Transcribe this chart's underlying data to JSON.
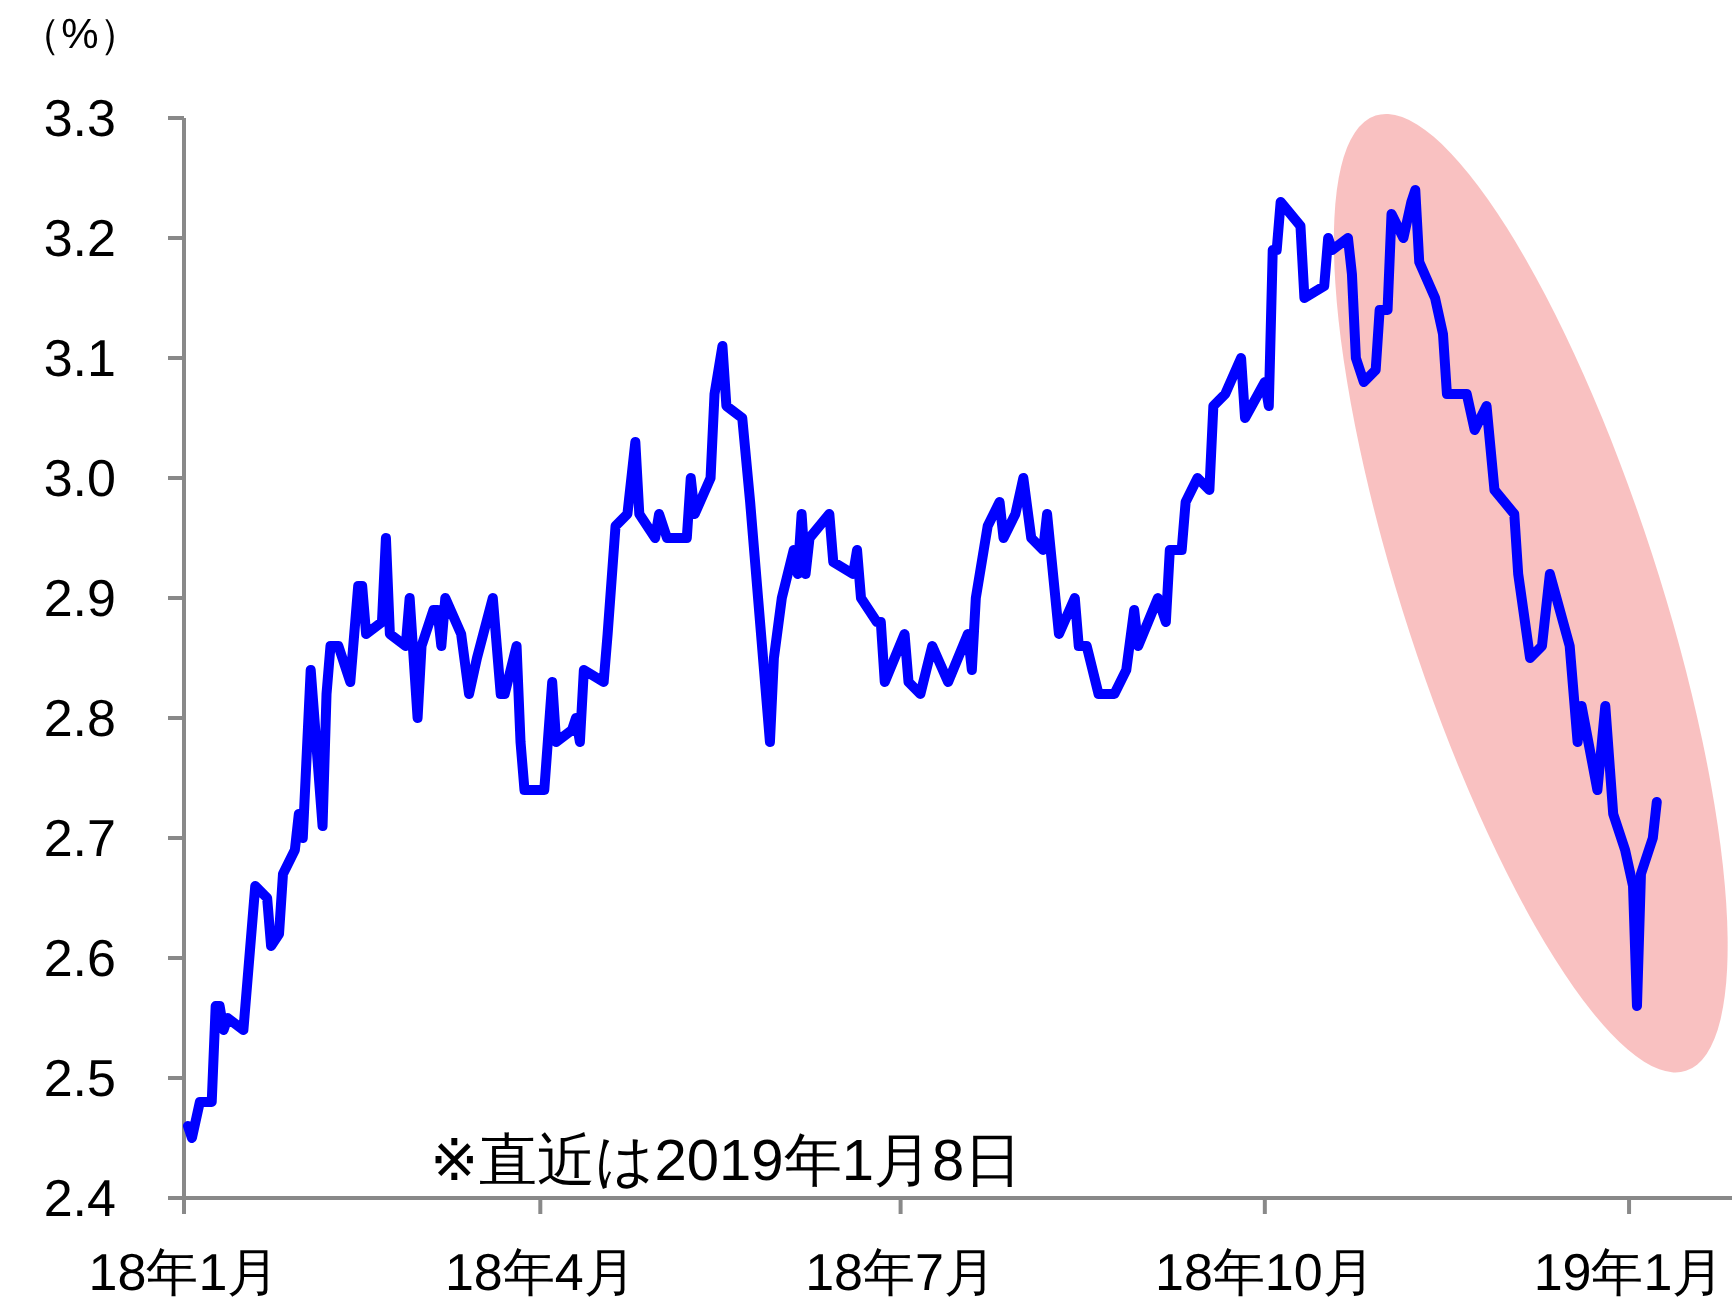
{
  "chart_data": {
    "type": "line",
    "ylabel": "（%）",
    "annotations": [
      "※直近は2019年1月8日"
    ],
    "x": [
      "2018-01-02",
      "2018-01-03",
      "2018-01-05",
      "2018-01-08",
      "2018-01-09",
      "2018-01-10",
      "2018-01-11",
      "2018-01-12",
      "2018-01-16",
      "2018-01-19",
      "2018-01-22",
      "2018-01-23",
      "2018-01-25",
      "2018-01-26",
      "2018-01-29",
      "2018-01-30",
      "2018-01-31",
      "2018-02-02",
      "2018-02-05",
      "2018-02-06",
      "2018-02-07",
      "2018-02-09",
      "2018-02-12",
      "2018-02-14",
      "2018-02-15",
      "2018-02-16",
      "2018-02-20",
      "2018-02-21",
      "2018-02-22",
      "2018-02-26",
      "2018-02-27",
      "2018-03-01",
      "2018-03-02",
      "2018-03-05",
      "2018-03-06",
      "2018-03-07",
      "2018-03-08",
      "2018-03-12",
      "2018-03-14",
      "2018-03-16",
      "2018-03-20",
      "2018-03-22",
      "2018-03-23",
      "2018-03-26",
      "2018-03-27",
      "2018-03-28",
      "2018-04-02",
      "2018-04-04",
      "2018-04-05",
      "2018-04-09",
      "2018-04-10",
      "2018-04-11",
      "2018-04-12",
      "2018-04-17",
      "2018-04-18",
      "2018-04-20",
      "2018-04-23",
      "2018-04-25",
      "2018-04-26",
      "2018-04-30",
      "2018-05-01",
      "2018-05-03",
      "2018-05-08",
      "2018-05-09",
      "2018-05-10",
      "2018-05-14",
      "2018-05-15",
      "2018-05-17",
      "2018-05-18",
      "2018-05-22",
      "2018-05-24",
      "2018-05-29",
      "2018-05-30",
      "2018-06-01",
      "2018-06-04",
      "2018-06-05",
      "2018-06-06",
      "2018-06-07",
      "2018-06-08",
      "2018-06-13",
      "2018-06-14",
      "2018-06-19",
      "2018-06-20",
      "2018-06-21",
      "2018-06-25",
      "2018-06-26",
      "2018-06-27",
      "2018-07-02",
      "2018-07-03",
      "2018-07-06",
      "2018-07-09",
      "2018-07-13",
      "2018-07-18",
      "2018-07-19",
      "2018-07-20",
      "2018-07-23",
      "2018-07-26",
      "2018-07-27",
      "2018-07-30",
      "2018-08-01",
      "2018-08-03",
      "2018-08-06",
      "2018-08-07",
      "2018-08-10",
      "2018-08-14",
      "2018-08-15",
      "2018-08-17",
      "2018-08-20",
      "2018-08-24",
      "2018-08-27",
      "2018-08-29",
      "2018-08-30",
      "2018-09-04",
      "2018-09-06",
      "2018-09-07",
      "2018-09-10",
      "2018-09-11",
      "2018-09-14",
      "2018-09-17",
      "2018-09-18",
      "2018-09-21",
      "2018-09-25",
      "2018-09-26",
      "2018-10-01",
      "2018-10-02",
      "2018-10-03",
      "2018-10-04",
      "2018-10-05",
      "2018-10-10",
      "2018-10-11",
      "2018-10-16",
      "2018-10-17",
      "2018-10-18",
      "2018-10-22",
      "2018-10-23",
      "2018-10-24",
      "2018-10-26",
      "2018-10-29",
      "2018-10-30",
      "2018-11-01",
      "2018-11-02",
      "2018-11-05",
      "2018-11-07",
      "2018-11-08",
      "2018-11-09",
      "2018-11-13",
      "2018-11-15",
      "2018-11-16",
      "2018-11-21",
      "2018-11-23",
      "2018-11-26",
      "2018-11-28",
      "2018-12-03",
      "2018-12-04",
      "2018-12-07",
      "2018-12-10",
      "2018-12-12",
      "2018-12-17",
      "2018-12-19",
      "2018-12-20",
      "2018-12-24",
      "2018-12-26",
      "2018-12-28",
      "2018-12-31",
      "2019-01-02",
      "2019-01-03",
      "2019-01-04",
      "2019-01-07",
      "2019-01-08"
    ],
    "series": [
      {
        "color": "#0000ff",
        "values": [
          2.46,
          2.45,
          2.48,
          2.48,
          2.56,
          2.56,
          2.54,
          2.55,
          2.54,
          2.66,
          2.65,
          2.61,
          2.62,
          2.67,
          2.69,
          2.72,
          2.7,
          2.84,
          2.71,
          2.82,
          2.86,
          2.86,
          2.83,
          2.91,
          2.91,
          2.87,
          2.88,
          2.95,
          2.87,
          2.86,
          2.9,
          2.8,
          2.86,
          2.89,
          2.89,
          2.86,
          2.9,
          2.87,
          2.82,
          2.85,
          2.9,
          2.82,
          2.82,
          2.86,
          2.78,
          2.74,
          2.74,
          2.83,
          2.78,
          2.79,
          2.8,
          2.78,
          2.84,
          2.83,
          2.87,
          2.96,
          2.97,
          3.03,
          2.97,
          2.95,
          2.97,
          2.95,
          2.95,
          3.0,
          2.97,
          3.0,
          3.07,
          3.11,
          3.06,
          3.05,
          2.98,
          2.78,
          2.85,
          2.9,
          2.94,
          2.92,
          2.97,
          2.92,
          2.95,
          2.97,
          2.93,
          2.92,
          2.94,
          2.9,
          2.88,
          2.88,
          2.83,
          2.87,
          2.83,
          2.82,
          2.86,
          2.83,
          2.87,
          2.84,
          2.9,
          2.96,
          2.98,
          2.95,
          2.97,
          3.0,
          2.95,
          2.94,
          2.97,
          2.87,
          2.9,
          2.86,
          2.86,
          2.82,
          2.82,
          2.84,
          2.89,
          2.86,
          2.9,
          2.88,
          2.94,
          2.94,
          2.98,
          3.0,
          2.99,
          3.06,
          3.07,
          3.1,
          3.05,
          3.08,
          3.06,
          3.19,
          3.19,
          3.23,
          3.21,
          3.15,
          3.16,
          3.2,
          3.19,
          3.2,
          3.17,
          3.1,
          3.08,
          3.09,
          3.14,
          3.14,
          3.22,
          3.2,
          3.23,
          3.24,
          3.18,
          3.15,
          3.12,
          3.07,
          3.07,
          3.04,
          3.06,
          2.99,
          2.97,
          2.92,
          2.85,
          2.86,
          2.92,
          2.86,
          2.78,
          2.81,
          2.74,
          2.81,
          2.72,
          2.69,
          2.66,
          2.56,
          2.67,
          2.7,
          2.73
        ]
      }
    ],
    "xlim": [
      "2018-01-01",
      "2019-01-27"
    ],
    "xticks": [
      {
        "value": "2018-01-01",
        "label": "18年1月"
      },
      {
        "value": "2018-04-01",
        "label": "18年4月"
      },
      {
        "value": "2018-07-01",
        "label": "18年7月"
      },
      {
        "value": "2018-10-01",
        "label": "18年10月"
      },
      {
        "value": "2019-01-01",
        "label": "19年1月"
      }
    ],
    "ylim": [
      2.4,
      3.3
    ],
    "yticks": [
      2.4,
      2.5,
      2.6,
      2.7,
      2.8,
      2.9,
      {
        "value": 3,
        "label": "3.0"
      },
      3.1,
      3.2,
      3.3
    ],
    "line_style": "solid"
  }
}
